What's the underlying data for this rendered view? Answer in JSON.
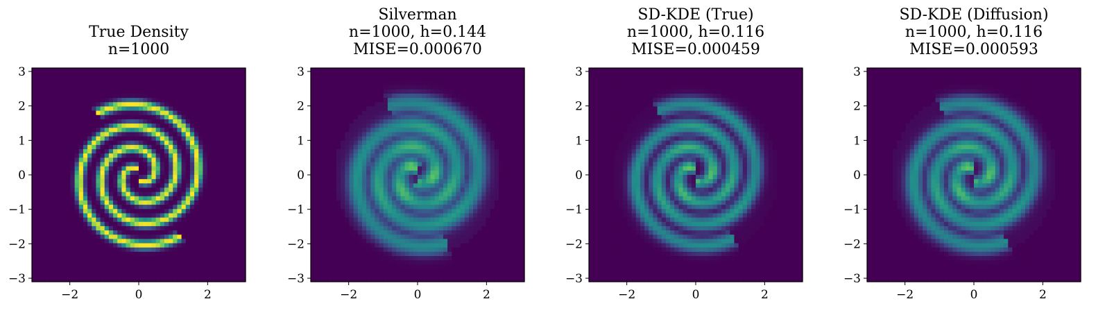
{
  "figure": {
    "colormap": [
      "#440154",
      "#3b528b",
      "#21918c",
      "#5ec962",
      "#fde725"
    ],
    "axis_color": "#000000",
    "background": "#ffffff"
  },
  "chart_data": [
    {
      "type": "heatmap",
      "title_lines": [
        "True Density",
        "n=1000"
      ],
      "n": 1000,
      "xlim": [
        -3.1,
        3.1
      ],
      "ylim": [
        -3.1,
        3.1
      ],
      "xticks": [
        -2,
        0,
        2
      ],
      "xtick_labels": [
        "−2",
        "0",
        "2"
      ],
      "yticks": [
        3,
        2,
        1,
        0,
        -1,
        -2,
        -3
      ],
      "ytick_labels": [
        "3",
        "2",
        "1",
        "0",
        "−1",
        "−2",
        "−3"
      ],
      "grid_size": 50,
      "density": {
        "model": "two-arm spiral",
        "rotation_deg": 0,
        "arm_width": 0.09,
        "spread": 0.0,
        "peak": 1.0,
        "blob_strength": 0.0
      },
      "background_value": 0.0
    },
    {
      "type": "heatmap",
      "title_lines": [
        "Silverman",
        "n=1000, h=0.144",
        "MISE=0.000670"
      ],
      "n": 1000,
      "h": 0.144,
      "mise": 0.00067,
      "xlim": [
        -3.1,
        3.1
      ],
      "ylim": [
        -3.1,
        3.1
      ],
      "xticks": [
        -2,
        0,
        2
      ],
      "xtick_labels": [
        "−2",
        "0",
        "2"
      ],
      "yticks": [
        3,
        2,
        1,
        0,
        -1,
        -2,
        -3
      ],
      "ytick_labels": [
        "3",
        "2",
        "1",
        "0",
        "−1",
        "−2",
        "−3"
      ],
      "grid_size": 50,
      "density": {
        "model": "two-arm spiral (KDE estimate)",
        "rotation_deg": 12,
        "arm_width": 0.2,
        "spread": 0.38,
        "peak": 0.62,
        "blob_strength": 0.45
      },
      "background_value": 0.0
    },
    {
      "type": "heatmap",
      "title_lines": [
        "SD-KDE (True)",
        "n=1000, h=0.116",
        "MISE=0.000459"
      ],
      "n": 1000,
      "h": 0.116,
      "mise": 0.000459,
      "xlim": [
        -3.1,
        3.1
      ],
      "ylim": [
        -3.1,
        3.1
      ],
      "xticks": [
        -2,
        0,
        2
      ],
      "xtick_labels": [
        "−2",
        "0",
        "2"
      ],
      "yticks": [
        3,
        2,
        1,
        0,
        -1,
        -2,
        -3
      ],
      "ytick_labels": [
        "3",
        "2",
        "1",
        "0",
        "−1",
        "−2",
        "−3"
      ],
      "grid_size": 50,
      "density": {
        "model": "two-arm spiral (KDE estimate)",
        "rotation_deg": 4,
        "arm_width": 0.16,
        "spread": 0.12,
        "peak": 0.68,
        "blob_strength": 0.4
      },
      "background_value": 0.0
    },
    {
      "type": "heatmap",
      "title_lines": [
        "SD-KDE (Diffusion)",
        "n=1000, h=0.116",
        "MISE=0.000593"
      ],
      "n": 1000,
      "h": 0.116,
      "mise": 0.000593,
      "xlim": [
        -3.1,
        3.1
      ],
      "ylim": [
        -3.1,
        3.1
      ],
      "xticks": [
        -2,
        0,
        2
      ],
      "xtick_labels": [
        "−2",
        "0",
        "2"
      ],
      "yticks": [
        3,
        2,
        1,
        0,
        -1,
        -2,
        -3
      ],
      "ytick_labels": [
        "3",
        "2",
        "1",
        "0",
        "−1",
        "−2",
        "−3"
      ],
      "grid_size": 50,
      "density": {
        "model": "two-arm spiral (KDE estimate)",
        "rotation_deg": 8,
        "arm_width": 0.18,
        "spread": 0.25,
        "peak": 0.64,
        "blob_strength": 0.45
      },
      "background_value": 0.0
    }
  ]
}
